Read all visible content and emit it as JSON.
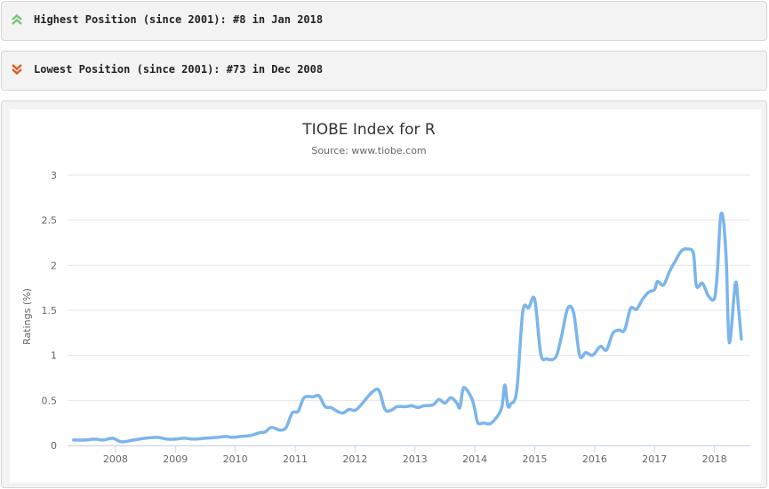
{
  "highest": {
    "label": "Highest Position (since 2001): #8 in Jan 2018",
    "icon": "double-chevron-up-icon",
    "color": "#78c478"
  },
  "lowest": {
    "label": "Lowest Position (since 2001): #73 in Dec 2008",
    "icon": "double-chevron-down-icon",
    "color": "#e05a1e"
  },
  "chart_data": {
    "type": "line",
    "title": "TIOBE Index for R",
    "subtitle": "Source: www.tiobe.com",
    "xlabel": "",
    "ylabel": "Ratings (%)",
    "ylim": [
      0,
      3
    ],
    "yticks": [
      "0",
      "0.5",
      "1",
      "1.5",
      "2",
      "2.5",
      "3"
    ],
    "xticks": [
      "2008",
      "2009",
      "2010",
      "2011",
      "2012",
      "2013",
      "2014",
      "2015",
      "2016",
      "2017",
      "2018"
    ],
    "grid": true,
    "line_color": "#7cb5ec",
    "series": [
      {
        "name": "",
        "points": [
          [
            2007.3,
            0.06
          ],
          [
            2007.5,
            0.06
          ],
          [
            2007.65,
            0.07
          ],
          [
            2007.8,
            0.06
          ],
          [
            2007.95,
            0.08
          ],
          [
            2008.1,
            0.04
          ],
          [
            2008.3,
            0.06
          ],
          [
            2008.5,
            0.08
          ],
          [
            2008.7,
            0.09
          ],
          [
            2008.85,
            0.07
          ],
          [
            2009.0,
            0.07
          ],
          [
            2009.15,
            0.08
          ],
          [
            2009.3,
            0.07
          ],
          [
            2009.5,
            0.08
          ],
          [
            2009.7,
            0.09
          ],
          [
            2009.85,
            0.1
          ],
          [
            2009.95,
            0.09
          ],
          [
            2010.1,
            0.1
          ],
          [
            2010.25,
            0.11
          ],
          [
            2010.4,
            0.14
          ],
          [
            2010.5,
            0.15
          ],
          [
            2010.6,
            0.2
          ],
          [
            2010.75,
            0.17
          ],
          [
            2010.85,
            0.2
          ],
          [
            2010.95,
            0.36
          ],
          [
            2011.05,
            0.38
          ],
          [
            2011.15,
            0.53
          ],
          [
            2011.3,
            0.54
          ],
          [
            2011.4,
            0.55
          ],
          [
            2011.5,
            0.43
          ],
          [
            2011.6,
            0.42
          ],
          [
            2011.7,
            0.38
          ],
          [
            2011.8,
            0.36
          ],
          [
            2011.9,
            0.4
          ],
          [
            2012.0,
            0.39
          ],
          [
            2012.1,
            0.45
          ],
          [
            2012.2,
            0.53
          ],
          [
            2012.3,
            0.6
          ],
          [
            2012.4,
            0.61
          ],
          [
            2012.5,
            0.4
          ],
          [
            2012.6,
            0.39
          ],
          [
            2012.7,
            0.43
          ],
          [
            2012.85,
            0.43
          ],
          [
            2012.95,
            0.44
          ],
          [
            2013.05,
            0.42
          ],
          [
            2013.15,
            0.44
          ],
          [
            2013.3,
            0.45
          ],
          [
            2013.4,
            0.51
          ],
          [
            2013.5,
            0.47
          ],
          [
            2013.6,
            0.53
          ],
          [
            2013.7,
            0.47
          ],
          [
            2013.75,
            0.42
          ],
          [
            2013.8,
            0.62
          ],
          [
            2013.85,
            0.63
          ],
          [
            2013.95,
            0.52
          ],
          [
            2014.0,
            0.4
          ],
          [
            2014.05,
            0.25
          ],
          [
            2014.15,
            0.25
          ],
          [
            2014.25,
            0.24
          ],
          [
            2014.35,
            0.3
          ],
          [
            2014.45,
            0.42
          ],
          [
            2014.5,
            0.67
          ],
          [
            2014.55,
            0.44
          ],
          [
            2014.6,
            0.46
          ],
          [
            2014.7,
            0.61
          ],
          [
            2014.8,
            1.48
          ],
          [
            2014.9,
            1.53
          ],
          [
            2015.0,
            1.62
          ],
          [
            2015.1,
            1.02
          ],
          [
            2015.2,
            0.96
          ],
          [
            2015.35,
            0.98
          ],
          [
            2015.45,
            1.22
          ],
          [
            2015.55,
            1.52
          ],
          [
            2015.65,
            1.47
          ],
          [
            2015.75,
            1.0
          ],
          [
            2015.85,
            1.03
          ],
          [
            2015.95,
            1.0
          ],
          [
            2016.0,
            1.02
          ],
          [
            2016.1,
            1.1
          ],
          [
            2016.2,
            1.06
          ],
          [
            2016.3,
            1.24
          ],
          [
            2016.4,
            1.28
          ],
          [
            2016.5,
            1.28
          ],
          [
            2016.6,
            1.52
          ],
          [
            2016.7,
            1.51
          ],
          [
            2016.8,
            1.62
          ],
          [
            2016.9,
            1.7
          ],
          [
            2017.0,
            1.73
          ],
          [
            2017.05,
            1.82
          ],
          [
            2017.15,
            1.78
          ],
          [
            2017.25,
            1.93
          ],
          [
            2017.35,
            2.05
          ],
          [
            2017.45,
            2.16
          ],
          [
            2017.55,
            2.18
          ],
          [
            2017.65,
            2.13
          ],
          [
            2017.7,
            1.77
          ],
          [
            2017.8,
            1.8
          ],
          [
            2017.9,
            1.66
          ],
          [
            2018.0,
            1.63
          ],
          [
            2018.05,
            1.93
          ],
          [
            2018.1,
            2.52
          ],
          [
            2018.15,
            2.5
          ],
          [
            2018.2,
            2.02
          ],
          [
            2018.25,
            1.14
          ],
          [
            2018.35,
            1.8
          ],
          [
            2018.4,
            1.55
          ],
          [
            2018.45,
            1.18
          ]
        ]
      }
    ]
  }
}
